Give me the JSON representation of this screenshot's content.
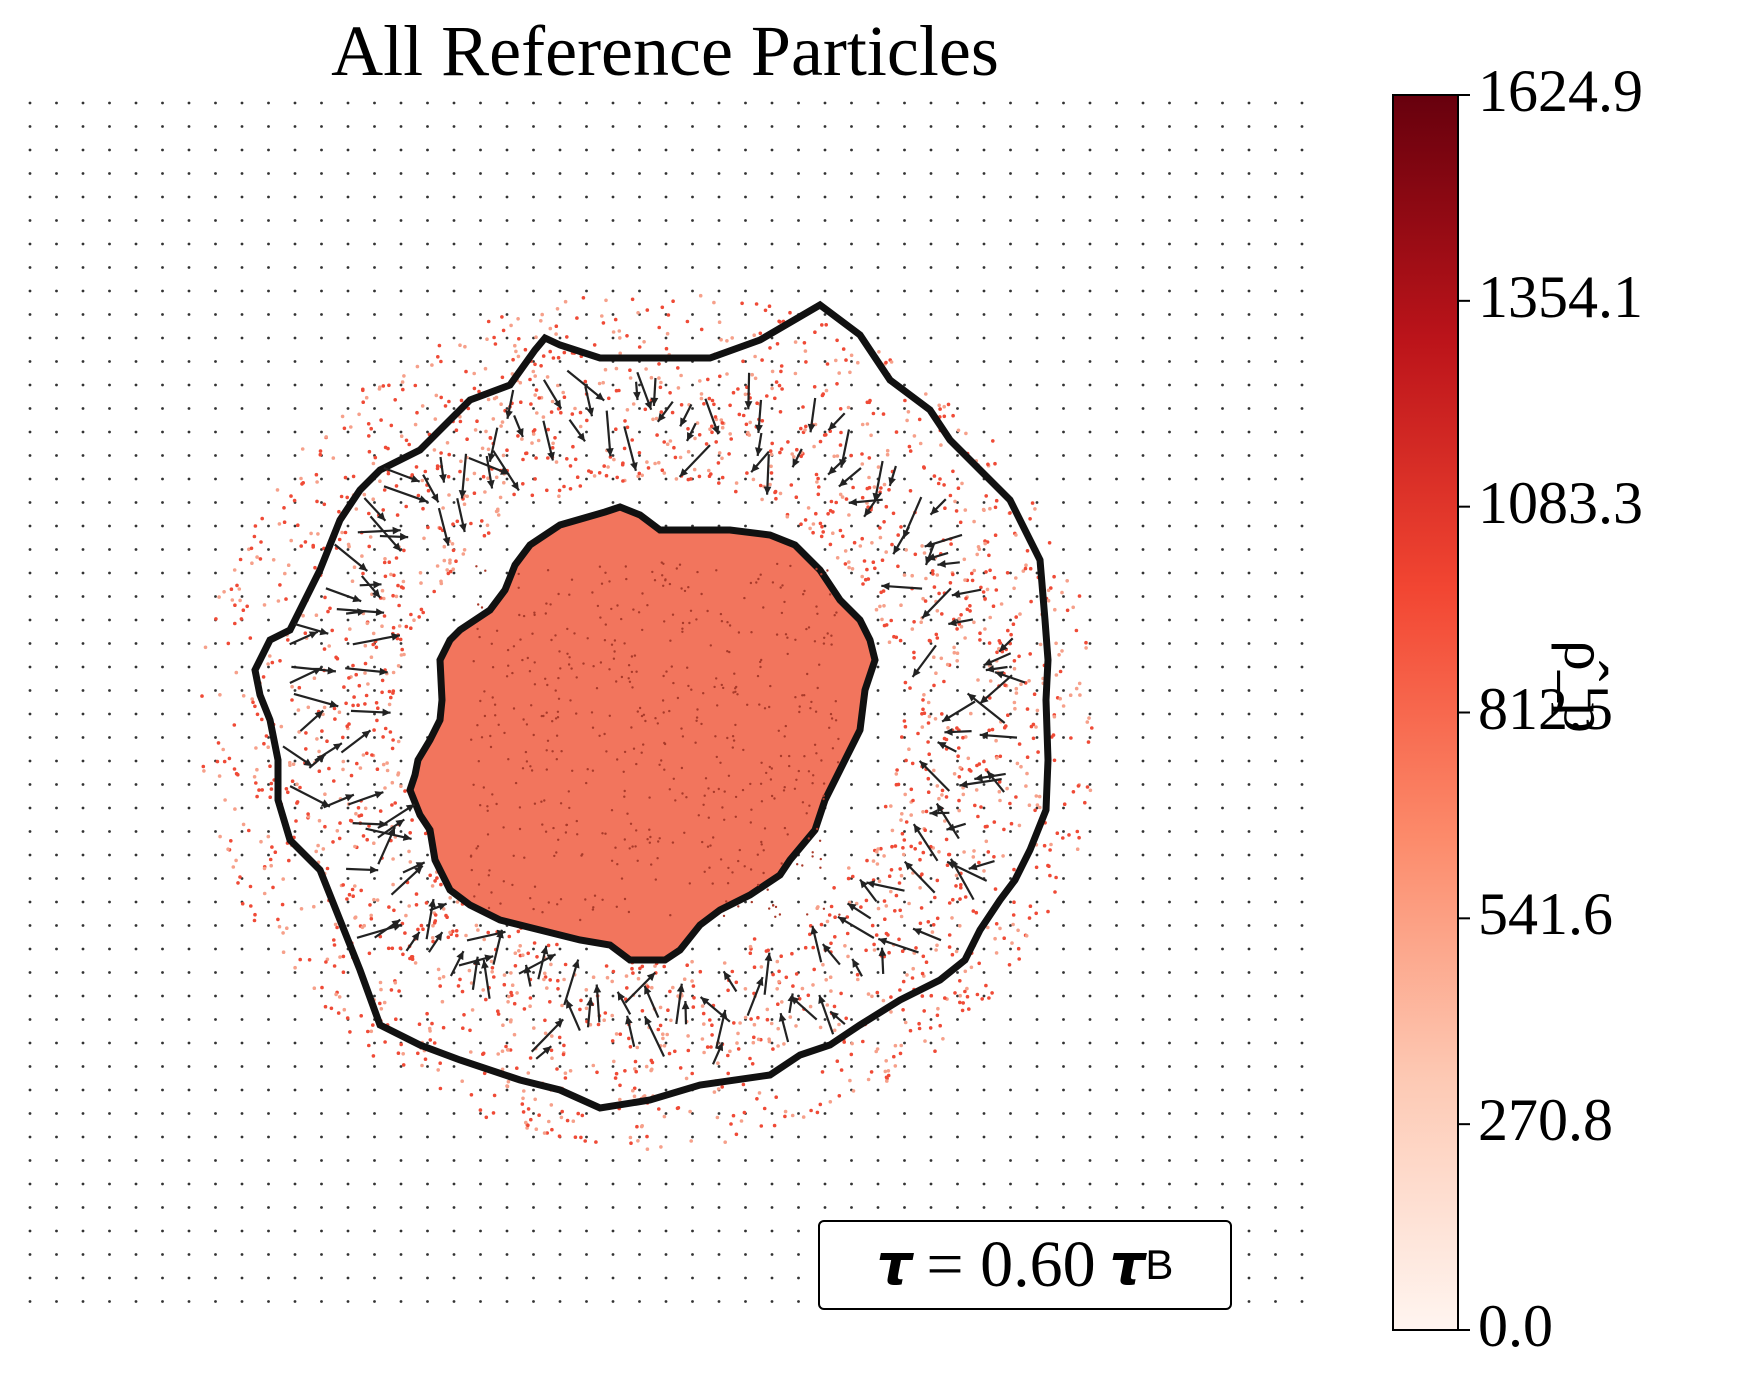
{
  "title": "All Reference Particles",
  "chart_data": {
    "type": "scatter",
    "description_series": [
      {
        "role": "lattice",
        "color": "#222222"
      },
      {
        "role": "particles",
        "colormap": "Reds"
      }
    ],
    "colorbar": {
      "label": "ρ̂_p",
      "min": 0.0,
      "max": 1624.9,
      "ticks": [
        "0.0",
        "270.8",
        "541.6",
        "812.5",
        "1083.3",
        "1354.1",
        "1624.9"
      ],
      "colors": [
        "#fff5f0",
        "#fdcab5",
        "#fc8a6a",
        "#f24632",
        "#bc141a",
        "#67000d"
      ]
    },
    "annotation": {
      "symbol": "τ",
      "equals": "= 0.60",
      "unit_symbol": "τ",
      "unit_sub": "B"
    },
    "inner_region_color": "#f2755d",
    "boundary_color": "#111111"
  }
}
